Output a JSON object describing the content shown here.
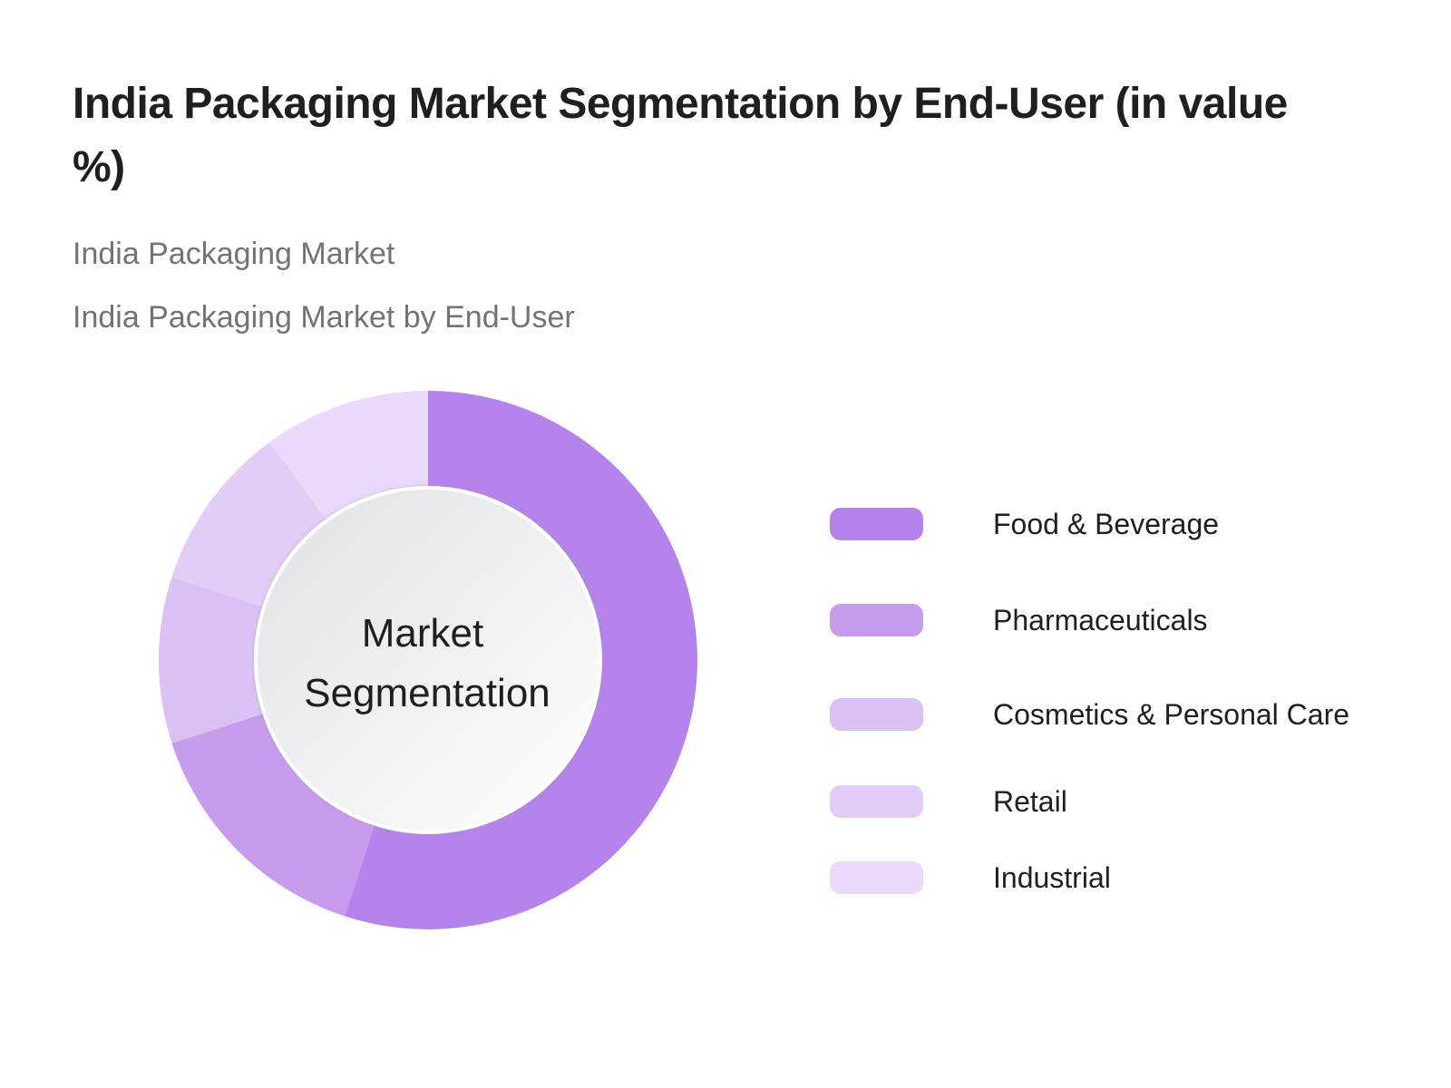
{
  "page": {
    "title": "India Packaging Market Segmentation by End-User (in value %)",
    "subtitle_1": "India Packaging Market",
    "subtitle_2": "India Packaging Market by End-User"
  },
  "chart_data": {
    "type": "pie",
    "variant": "donut",
    "center_label_line1": "Market",
    "center_label_line2": "Segmentation",
    "categories": [
      "Food & Beverage",
      "Pharmaceuticals",
      "Cosmetics & Personal Care",
      "Retail",
      "Industrial"
    ],
    "values": [
      55,
      15,
      10,
      10,
      10
    ],
    "unit": "%",
    "colors": [
      "#b483eb",
      "#c69ced",
      "#dbc2f6",
      "#e2cdf6",
      "#ead9fa"
    ],
    "legend_position": "right"
  }
}
